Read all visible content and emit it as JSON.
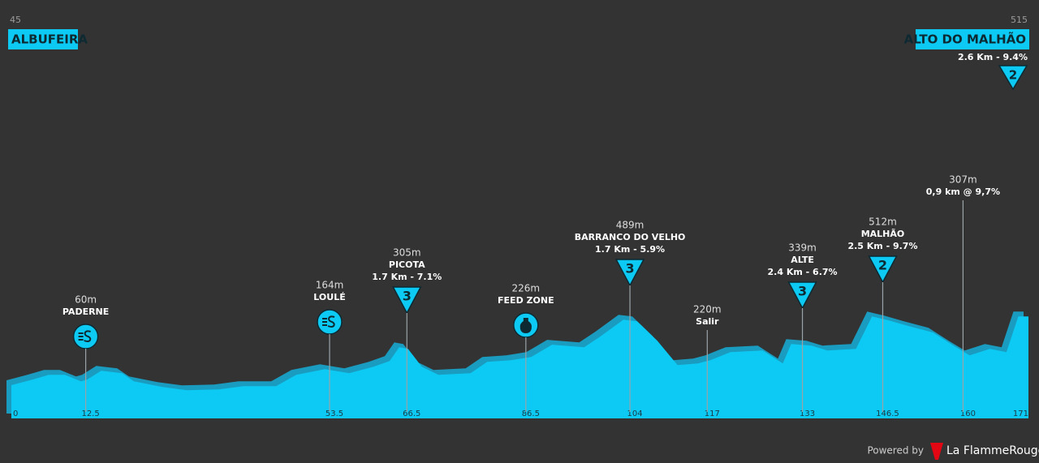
{
  "chart_data": {
    "type": "area",
    "start_elevation": 45,
    "start_name": "ALBUFEIRA",
    "end_elevation": 515,
    "end_name": "ALTO DO MALHÃO",
    "end_detail": "2.6 Km - 9.4%",
    "end_badge": "2",
    "color": "#0ccaf3",
    "x": [
      0,
      3.5,
      6.3,
      9,
      11.7,
      12.7,
      15.1,
      18.6,
      20.6,
      25.4,
      29.5,
      34.9,
      39,
      44.5,
      47.9,
      52.7,
      56.8,
      60.9,
      63.6,
      65.2,
      66.7,
      69,
      71.8,
      77.2,
      80,
      84,
      87.4,
      90.9,
      96.3,
      99,
      102.9,
      105.2,
      108.6,
      112,
      115.4,
      117.5,
      120.9,
      126.3,
      129.7,
      131.1,
      134.5,
      137.2,
      142,
      144.7,
      147.5,
      150.9,
      155,
      158.4,
      161.1,
      164.5,
      167.3,
      169.3,
      171
    ],
    "values": [
      45,
      82,
      115,
      115,
      71,
      82,
      143,
      126,
      71,
      33,
      11,
      16,
      38,
      38,
      115,
      154,
      126,
      170,
      209,
      302,
      291,
      170,
      115,
      126,
      203,
      214,
      236,
      319,
      302,
      374,
      489,
      478,
      346,
      181,
      192,
      214,
      269,
      280,
      192,
      324,
      313,
      280,
      291,
      511,
      484,
      445,
      401,
      313,
      247,
      291,
      269,
      511,
      511
    ],
    "xlim": [
      0,
      171
    ],
    "ylim": [
      -180,
      1720
    ],
    "xticks": [
      0,
      12.5,
      53.5,
      66.5,
      86.5,
      104,
      117,
      133,
      146.5,
      160,
      171
    ],
    "points": [
      {
        "km": 12.5,
        "elevation": "60m",
        "name": "PADERNE",
        "icon": "sprint"
      },
      {
        "km": 53.5,
        "elevation": "164m",
        "name": "LOULÉ",
        "icon": "sprint"
      },
      {
        "km": 66.5,
        "elevation": "305m",
        "name": "PICOTA",
        "detail": "1.7 Km - 7.1%",
        "icon": "climb",
        "badge": "3"
      },
      {
        "km": 86.5,
        "elevation": "226m",
        "name": "FEED ZONE",
        "icon": "feed"
      },
      {
        "km": 104,
        "elevation": "489m",
        "name": "BARRANCO DO VELHO",
        "detail": "1.7 Km - 5.9%",
        "icon": "climb",
        "badge": "3"
      },
      {
        "km": 117,
        "elevation": "220m",
        "name": "Salir"
      },
      {
        "km": 133,
        "elevation": "339m",
        "name": "ALTE",
        "detail": "2.4 Km - 6.7%",
        "icon": "climb",
        "badge": "3"
      },
      {
        "km": 146.5,
        "elevation": "512m",
        "name": "MALHÃO",
        "detail": "2.5 Km - 9.7%",
        "icon": "climb",
        "badge": "2"
      },
      {
        "km": 160,
        "elevation": "307m",
        "name": "0,9 km @ 9,7%"
      }
    ],
    "powered_by": "Powered by",
    "brand": "La FlammeRouge"
  }
}
